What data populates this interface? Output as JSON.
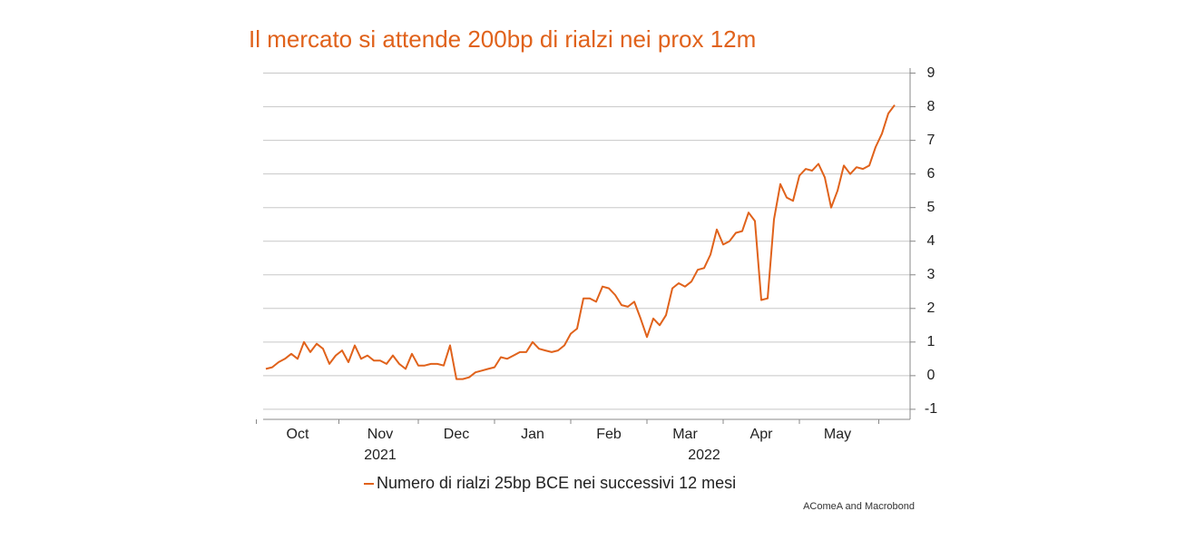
{
  "chart_data": {
    "type": "line",
    "title": "Il mercato si attende 200bp di rialzi nei prox 12m",
    "source": "AComeA and Macrobond",
    "categories": [
      null,
      null,
      null,
      null,
      null,
      "Oct",
      null,
      null,
      null,
      null,
      null,
      null,
      null,
      null,
      null,
      null,
      null,
      null,
      "Nov",
      null,
      null,
      null,
      null,
      null,
      null,
      null,
      null,
      null,
      null,
      null,
      "Dec",
      null,
      null,
      null,
      null,
      null,
      null,
      null,
      null,
      null,
      null,
      null,
      "Jan",
      null,
      null,
      null,
      null,
      null,
      null,
      null,
      null,
      null,
      null,
      null,
      "Feb",
      null,
      null,
      null,
      null,
      null,
      null,
      null,
      null,
      null,
      null,
      null,
      "Mar",
      null,
      null,
      null,
      null,
      null,
      null,
      null,
      null,
      null,
      null,
      null,
      "Apr",
      null,
      null,
      null,
      null,
      null,
      null,
      null,
      null,
      null,
      null,
      null,
      "May",
      null,
      null,
      null,
      null,
      null,
      null,
      null,
      null,
      null
    ],
    "category_years": [
      null,
      null,
      null,
      null,
      null,
      null,
      null,
      null,
      null,
      null,
      null,
      null,
      null,
      null,
      null,
      null,
      null,
      null,
      "2021",
      null,
      null,
      null,
      null,
      null,
      null,
      null,
      null,
      null,
      null,
      null,
      null,
      null,
      null,
      null,
      null,
      null,
      null,
      null,
      null,
      null,
      null,
      null,
      null,
      null,
      null,
      null,
      null,
      null,
      null,
      null,
      null,
      null,
      null,
      null,
      null,
      null,
      null,
      null,
      null,
      null,
      null,
      null,
      null,
      null,
      null,
      null,
      null,
      null,
      null,
      "2022",
      null,
      null,
      null,
      null,
      null,
      null,
      null,
      null,
      null,
      null,
      null,
      null,
      null,
      null,
      null,
      null,
      null,
      null,
      null,
      null,
      null,
      null,
      null,
      null,
      null,
      null,
      null,
      null,
      null,
      null
    ],
    "series": [
      {
        "name": "Numero di rialzi 25bp BCE nei successivi 12 mesi",
        "color": "#e0621b",
        "values": [
          0.2,
          0.25,
          0.4,
          0.5,
          0.65,
          0.5,
          1.0,
          0.7,
          0.95,
          0.8,
          0.35,
          0.6,
          0.75,
          0.4,
          0.9,
          0.5,
          0.6,
          0.45,
          0.45,
          0.35,
          0.6,
          0.35,
          0.2,
          0.65,
          0.3,
          0.3,
          0.35,
          0.35,
          0.3,
          0.9,
          -0.1,
          -0.1,
          -0.05,
          0.1,
          0.15,
          0.2,
          0.25,
          0.55,
          0.5,
          0.6,
          0.7,
          0.7,
          1.0,
          0.8,
          0.75,
          0.7,
          0.75,
          0.9,
          1.25,
          1.4,
          2.3,
          2.3,
          2.2,
          2.65,
          2.6,
          2.4,
          2.1,
          2.05,
          2.2,
          1.7,
          1.15,
          1.7,
          1.5,
          1.8,
          2.6,
          2.75,
          2.65,
          2.8,
          3.15,
          3.2,
          3.6,
          4.35,
          3.9,
          4.0,
          4.25,
          4.3,
          4.85,
          4.6,
          2.25,
          2.3,
          4.65,
          5.7,
          5.3,
          5.2,
          5.95,
          6.15,
          6.1,
          6.3,
          5.9,
          5.0,
          5.5,
          6.25,
          6.0,
          6.2,
          6.15,
          6.25,
          6.8,
          7.2,
          7.8,
          8.05
        ]
      }
    ],
    "ylim": [
      -1.3,
      9.15
    ],
    "yticks": [
      -1,
      0,
      1,
      2,
      3,
      4,
      5,
      6,
      7,
      8,
      9
    ],
    "grid": true
  }
}
